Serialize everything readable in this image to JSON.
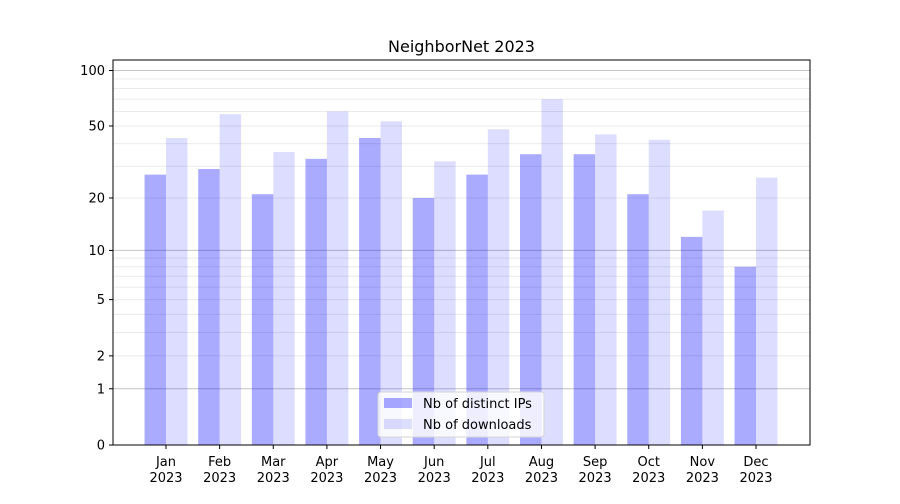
{
  "chart_data": {
    "type": "bar",
    "title": "NeighborNet 2023",
    "xlabel": "",
    "ylabel": "",
    "yscale": "log(1+y)",
    "ylim": [
      0,
      114
    ],
    "yticks": [
      0,
      1,
      2,
      5,
      10,
      20,
      50,
      100
    ],
    "grid": true,
    "legend": "bottom-center",
    "categories": [
      "Jan\n2023",
      "Feb\n2023",
      "Mar\n2023",
      "Apr\n2023",
      "May\n2023",
      "Jun\n2023",
      "Jul\n2023",
      "Aug\n2023",
      "Sep\n2023",
      "Oct\n2023",
      "Nov\n2023",
      "Dec\n2023"
    ],
    "series": [
      {
        "name": "Nb of distinct IPs",
        "color": "#aaaaff",
        "values": [
          27,
          29,
          21,
          33,
          43,
          20,
          27,
          35,
          35,
          21,
          12,
          8
        ]
      },
      {
        "name": "Nb of downloads",
        "color": "#ddddff",
        "values": [
          43,
          58,
          36,
          60,
          53,
          32,
          48,
          70,
          45,
          42,
          17,
          26
        ]
      }
    ]
  }
}
